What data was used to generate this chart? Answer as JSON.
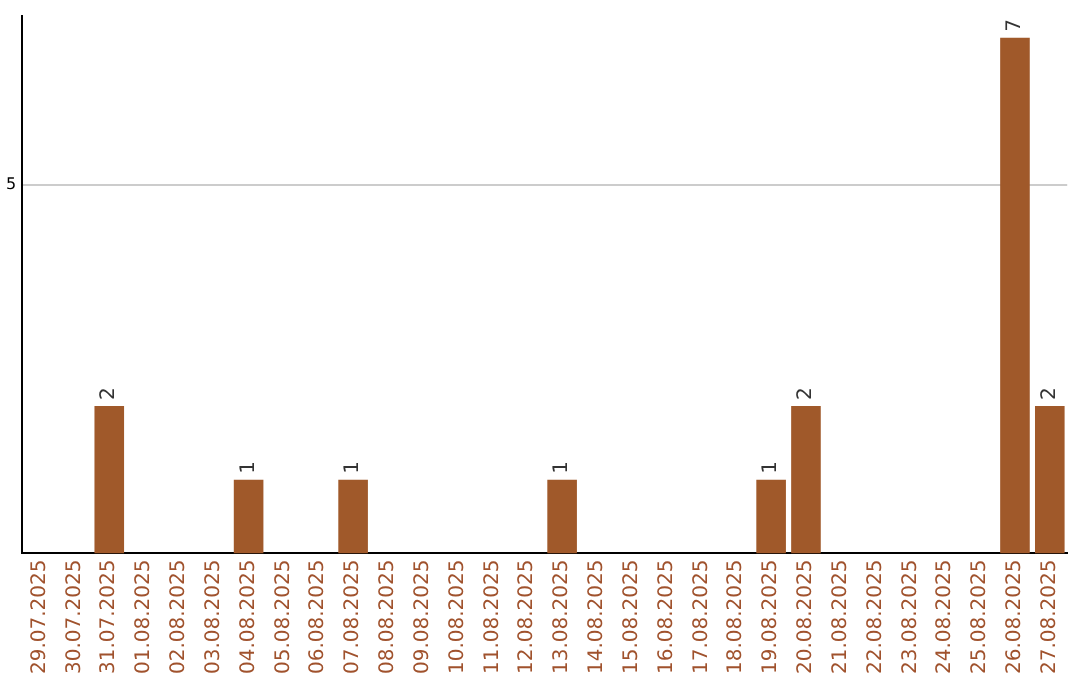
{
  "chart_data": {
    "type": "bar",
    "categories": [
      "29.07.2025",
      "30.07.2025",
      "31.07.2025",
      "01.08.2025",
      "02.08.2025",
      "03.08.2025",
      "04.08.2025",
      "05.08.2025",
      "06.08.2025",
      "07.08.2025",
      "08.08.2025",
      "09.08.2025",
      "10.08.2025",
      "11.08.2025",
      "12.08.2025",
      "13.08.2025",
      "14.08.2025",
      "15.08.2025",
      "16.08.2025",
      "17.08.2025",
      "18.08.2025",
      "19.08.2025",
      "20.08.2025",
      "21.08.2025",
      "22.08.2025",
      "23.08.2025",
      "24.08.2025",
      "25.08.2025",
      "26.08.2025",
      "27.08.2025"
    ],
    "values": [
      0,
      0,
      2,
      0,
      0,
      0,
      1,
      0,
      0,
      1,
      0,
      0,
      0,
      0,
      0,
      1,
      0,
      0,
      0,
      0,
      0,
      1,
      2,
      0,
      0,
      0,
      0,
      0,
      7,
      2
    ],
    "value_labels": [
      null,
      null,
      "2",
      null,
      null,
      null,
      "1",
      null,
      null,
      "1",
      null,
      null,
      null,
      null,
      null,
      "1",
      null,
      null,
      null,
      null,
      null,
      "1",
      "2",
      null,
      null,
      null,
      null,
      null,
      "7",
      "2"
    ],
    "color": "#a0592a",
    "ylim": [
      0,
      7.3
    ],
    "yticks": [
      5
    ],
    "grid": "y",
    "legend": false
  }
}
